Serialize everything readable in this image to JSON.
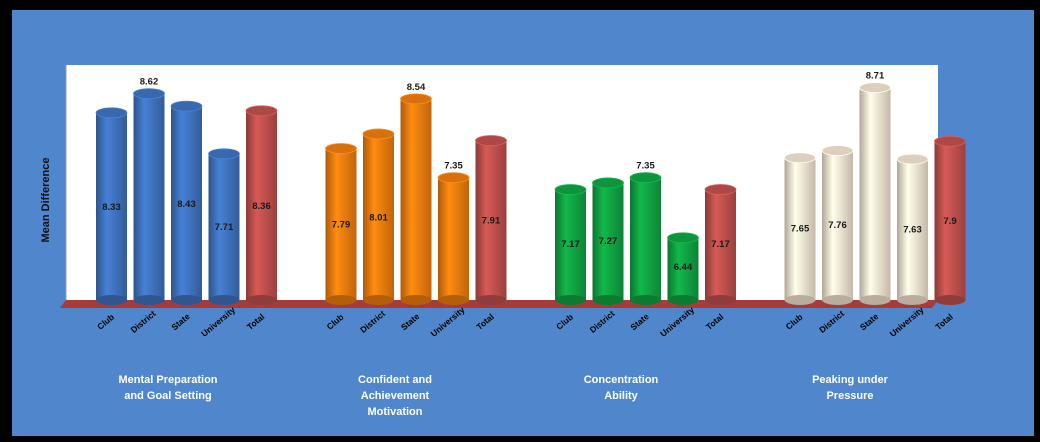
{
  "chart_data": {
    "type": "bar",
    "ylabel": "Mean Difference",
    "categories": [
      "Club",
      "District",
      "State",
      "University",
      "Total"
    ],
    "groups": [
      {
        "name": "Mental Preparation and Goal Setting",
        "values": [
          8.33,
          8.62,
          8.43,
          7.71,
          8.36
        ],
        "labels": [
          "8.33",
          "8.62",
          "8.43",
          "7.71",
          "8.36"
        ],
        "colors": [
          "#3f73bf",
          "#3f73bf",
          "#3f73bf",
          "#3f73bf",
          "#c0504d"
        ]
      },
      {
        "name": "Confident and Achievement Motivation",
        "values": [
          7.79,
          8.01,
          8.54,
          7.35,
          7.91
        ],
        "labels": [
          "7.79",
          "8.01",
          "8.54",
          "7.35",
          "7.91"
        ],
        "colors": [
          "#f07d0e",
          "#f07d0e",
          "#f07d0e",
          "#f07d0e",
          "#c0504d"
        ]
      },
      {
        "name": "Concentration Ability",
        "values": [
          7.17,
          7.27,
          7.35,
          6.44,
          7.17
        ],
        "labels": [
          "7.17",
          "7.27",
          "7.35",
          "6.44",
          "7.17"
        ],
        "colors": [
          "#10a443",
          "#10a443",
          "#10a443",
          "#10a443",
          "#c0504d"
        ]
      },
      {
        "name": "Peaking under Pressure",
        "values": [
          7.65,
          7.76,
          8.71,
          7.63,
          7.9
        ],
        "labels": [
          "7.65",
          "7.76",
          "8.71",
          "7.63",
          "7.9"
        ],
        "colors": [
          "#f6e6d2",
          "#f6e6d2",
          "#f6e6d2",
          "#f6e6d2",
          "#c0504d"
        ]
      }
    ],
    "value_label_position": {
      "outside_top": [
        "8.62",
        "8.54",
        "7.35",
        "8.71"
      ]
    },
    "grid": false,
    "legend": "none"
  },
  "group_titles": [
    [
      "Mental Preparation",
      "and Goal Setting"
    ],
    [
      "Confident and",
      "Achievement",
      "Motivation"
    ],
    [
      "Concentration",
      "Ability"
    ],
    [
      "Peaking under",
      "Pressure"
    ]
  ]
}
